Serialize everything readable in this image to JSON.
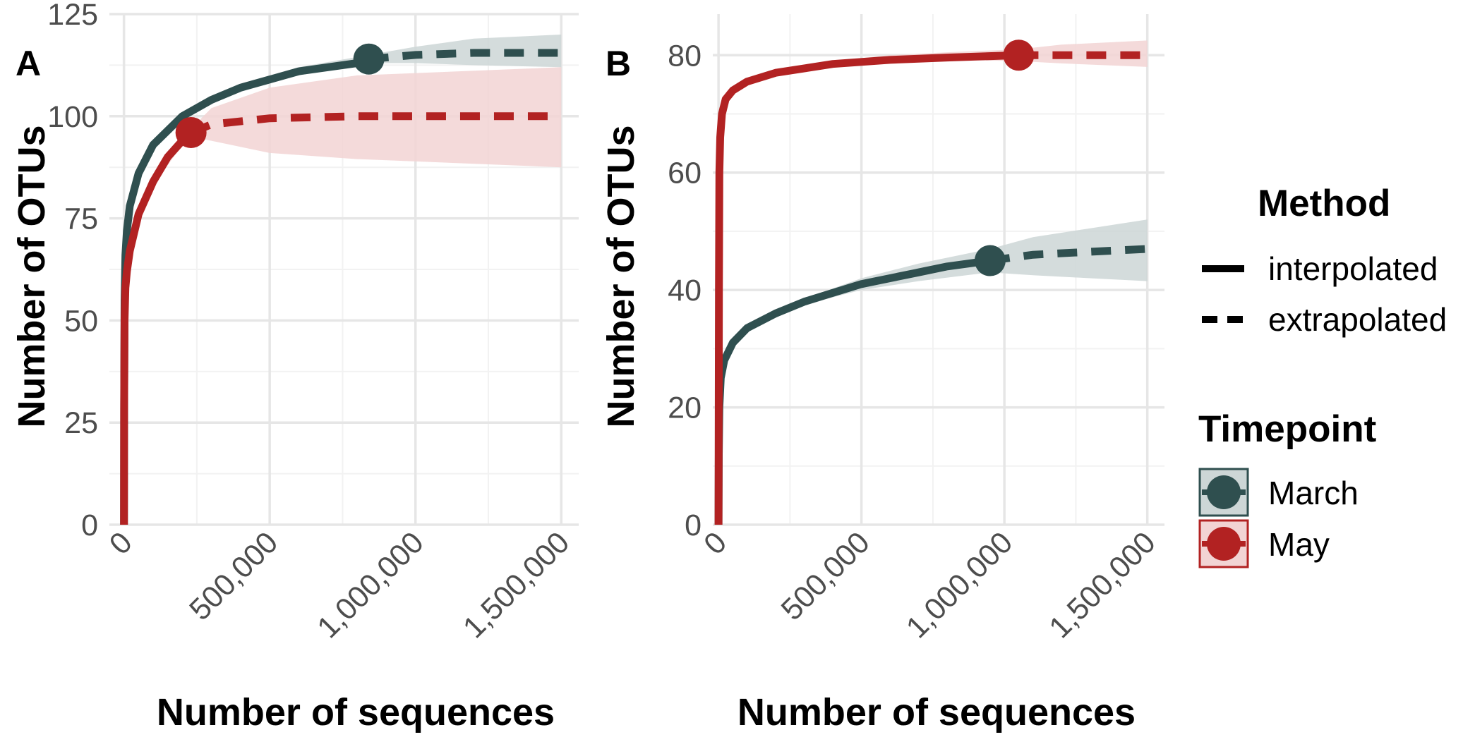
{
  "chart_data": [
    {
      "panel": "A",
      "type": "line",
      "xlabel": "Number of sequences",
      "ylabel": "Number of OTUs",
      "xlim": [
        -50000,
        1560000
      ],
      "ylim": [
        0,
        125
      ],
      "xticks": [
        0,
        500000,
        1000000,
        1500000
      ],
      "xtick_labels": [
        "0",
        "500,000",
        "1,000,000",
        "1,500,000"
      ],
      "yticks": [
        0,
        25,
        50,
        75,
        100,
        125
      ],
      "ytick_labels": [
        "0",
        "25",
        "50",
        "75",
        "100",
        "125"
      ],
      "grid": true,
      "series": [
        {
          "name": "March",
          "color": "#2f4f4f",
          "fill": "#cdd6d6",
          "interpolated": [
            [
              0,
              0
            ],
            [
              500,
              30
            ],
            [
              2000,
              55
            ],
            [
              5000,
              66
            ],
            [
              10000,
              72
            ],
            [
              20000,
              78
            ],
            [
              50000,
              86
            ],
            [
              100000,
              93
            ],
            [
              200000,
              100
            ],
            [
              300000,
              104
            ],
            [
              400000,
              107
            ],
            [
              500000,
              109
            ],
            [
              600000,
              111
            ],
            [
              700000,
              112
            ],
            [
              800000,
              113
            ],
            [
              840000,
              114
            ]
          ],
          "extrapolated": [
            [
              840000,
              114
            ],
            [
              1000000,
              115
            ],
            [
              1200000,
              115.5
            ],
            [
              1500000,
              115.5
            ]
          ],
          "band_upper": [
            [
              600000,
              112
            ],
            [
              840000,
              115
            ],
            [
              1000000,
              117
            ],
            [
              1200000,
              119
            ],
            [
              1500000,
              120
            ]
          ],
          "band_lower": [
            [
              600000,
              110
            ],
            [
              840000,
              113
            ],
            [
              1000000,
              113
            ],
            [
              1200000,
              112.5
            ],
            [
              1500000,
              112
            ]
          ],
          "observed": [
            840000,
            114
          ]
        },
        {
          "name": "May",
          "color": "#b22222",
          "fill": "#f2d4d4",
          "interpolated": [
            [
              0,
              0
            ],
            [
              500,
              28
            ],
            [
              2000,
              50
            ],
            [
              5000,
              58
            ],
            [
              10000,
              62
            ],
            [
              20000,
              67
            ],
            [
              50000,
              76
            ],
            [
              100000,
              84
            ],
            [
              150000,
              90
            ],
            [
              200000,
              94
            ],
            [
              230000,
              96
            ]
          ],
          "extrapolated": [
            [
              230000,
              96
            ],
            [
              300000,
              98
            ],
            [
              500000,
              99.5
            ],
            [
              800000,
              100
            ],
            [
              1500000,
              100
            ]
          ],
          "band_upper": [
            [
              50000,
              77
            ],
            [
              100000,
              85
            ],
            [
              200000,
              95
            ],
            [
              230000,
              97
            ],
            [
              300000,
              102
            ],
            [
              500000,
              107
            ],
            [
              800000,
              110
            ],
            [
              1500000,
              112
            ]
          ],
          "band_lower": [
            [
              50000,
              75
            ],
            [
              100000,
              83
            ],
            [
              200000,
              93
            ],
            [
              230000,
              95
            ],
            [
              300000,
              94
            ],
            [
              500000,
              91
            ],
            [
              800000,
              89.5
            ],
            [
              1500000,
              87.5
            ]
          ],
          "observed": [
            230000,
            96
          ]
        }
      ]
    },
    {
      "panel": "B",
      "type": "line",
      "xlabel": "Number of sequences",
      "ylabel": "Number of OTUs",
      "xlim": [
        -20000,
        1560000
      ],
      "ylim": [
        0,
        87
      ],
      "xticks": [
        0,
        500000,
        1000000,
        1500000
      ],
      "xtick_labels": [
        "0",
        "500,000",
        "1,000,000",
        "1,500,000"
      ],
      "yticks": [
        0,
        20,
        40,
        60,
        80
      ],
      "ytick_labels": [
        "0",
        "20",
        "40",
        "60",
        "80"
      ],
      "grid": true,
      "series": [
        {
          "name": "March",
          "color": "#2f4f4f",
          "fill": "#cdd6d6",
          "interpolated": [
            [
              0,
              0
            ],
            [
              1000,
              12
            ],
            [
              3000,
              20
            ],
            [
              8000,
              25
            ],
            [
              20000,
              28
            ],
            [
              50000,
              31
            ],
            [
              100000,
              33.5
            ],
            [
              200000,
              36
            ],
            [
              300000,
              38
            ],
            [
              400000,
              39.5
            ],
            [
              500000,
              41
            ],
            [
              600000,
              42
            ],
            [
              700000,
              43
            ],
            [
              800000,
              44
            ],
            [
              950000,
              45
            ]
          ],
          "extrapolated": [
            [
              950000,
              45
            ],
            [
              1100000,
              46
            ],
            [
              1300000,
              46.5
            ],
            [
              1500000,
              47
            ]
          ],
          "band_upper": [
            [
              300000,
              38.5
            ],
            [
              500000,
              42
            ],
            [
              700000,
              44.5
            ],
            [
              950000,
              47
            ],
            [
              1100000,
              49
            ],
            [
              1300000,
              50.5
            ],
            [
              1500000,
              52
            ]
          ],
          "band_lower": [
            [
              300000,
              37.5
            ],
            [
              500000,
              40
            ],
            [
              700000,
              41.5
            ],
            [
              950000,
              43
            ],
            [
              1100000,
              42.5
            ],
            [
              1300000,
              42
            ],
            [
              1500000,
              41.5
            ]
          ],
          "observed": [
            950000,
            45
          ]
        },
        {
          "name": "May",
          "color": "#b22222",
          "fill": "#f2d4d4",
          "interpolated": [
            [
              0,
              0
            ],
            [
              1500,
              40
            ],
            [
              3000,
              60
            ],
            [
              6000,
              66
            ],
            [
              12000,
              70
            ],
            [
              25000,
              72.5
            ],
            [
              50000,
              74
            ],
            [
              100000,
              75.5
            ],
            [
              200000,
              77
            ],
            [
              400000,
              78.5
            ],
            [
              600000,
              79.2
            ],
            [
              800000,
              79.6
            ],
            [
              1050000,
              80
            ]
          ],
          "extrapolated": [
            [
              1050000,
              80
            ],
            [
              1200000,
              80
            ],
            [
              1500000,
              80
            ]
          ],
          "band_upper": [
            [
              200000,
              77.5
            ],
            [
              400000,
              79
            ],
            [
              600000,
              80
            ],
            [
              800000,
              80.5
            ],
            [
              1050000,
              81
            ],
            [
              1200000,
              81.8
            ],
            [
              1500000,
              82.5
            ]
          ],
          "band_lower": [
            [
              200000,
              76.5
            ],
            [
              400000,
              78
            ],
            [
              600000,
              78.8
            ],
            [
              800000,
              79.2
            ],
            [
              1050000,
              79
            ],
            [
              1200000,
              78.6
            ],
            [
              1500000,
              78
            ]
          ],
          "observed": [
            1050000,
            80
          ]
        }
      ]
    }
  ],
  "legend": {
    "method_title": "Method",
    "method_items": [
      "interpolated",
      "extrapolated"
    ],
    "timepoint_title": "Timepoint",
    "timepoint_items": [
      "March",
      "May"
    ]
  }
}
